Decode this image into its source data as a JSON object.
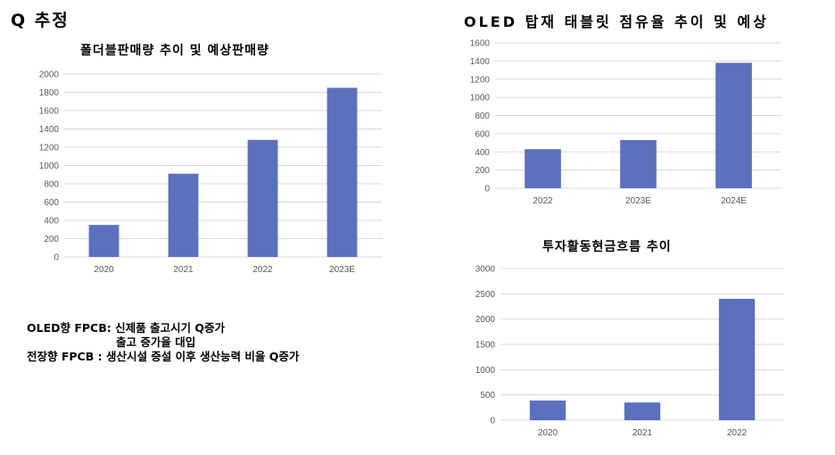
{
  "page": {
    "title": "Q 추정"
  },
  "notes": [
    "OLED향 FPCB: 신제품 출고시기 Q증가",
    "출고 증가율 대입",
    "전장향 FPCB  : 생산시설 증설 이후 생산능력 비율 Q증가"
  ],
  "chart_data": [
    {
      "id": "foldable",
      "type": "bar",
      "title": "폴더블판매량  추이  및  예상판매량",
      "categories": [
        "2020",
        "2021",
        "2022",
        "2023E"
      ],
      "values": [
        350,
        910,
        1280,
        1850
      ],
      "ylim": [
        0,
        2000
      ],
      "yticks": [
        0,
        200,
        400,
        600,
        800,
        1000,
        1200,
        1400,
        1600,
        1800,
        2000
      ],
      "grid": true,
      "color": "#5b70bf"
    },
    {
      "id": "oled_tablet",
      "type": "bar",
      "title": "OLED 탑재 태블릿 점유율 추이 및 예상",
      "categories": [
        "2022",
        "2023E",
        "2024E"
      ],
      "values": [
        430,
        530,
        1380
      ],
      "ylim": [
        0,
        1600
      ],
      "yticks": [
        0,
        200,
        400,
        600,
        800,
        1000,
        1200,
        1400,
        1600
      ],
      "grid": true,
      "color": "#5b70bf"
    },
    {
      "id": "investing_cf",
      "type": "bar",
      "title": "투자활동현금흐름  추이",
      "categories": [
        "2020",
        "2021",
        "2022"
      ],
      "values": [
        390,
        350,
        2400
      ],
      "ylim": [
        0,
        3000
      ],
      "yticks": [
        0,
        500,
        1000,
        1500,
        2000,
        2500,
        3000
      ],
      "grid": true,
      "color": "#5b70bf"
    }
  ]
}
